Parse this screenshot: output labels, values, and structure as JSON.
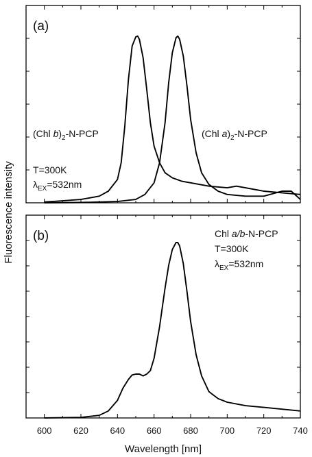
{
  "chart_data": [
    {
      "type": "line",
      "panel_label": "(a)",
      "xlim": [
        590,
        740
      ],
      "annotations": {
        "b_label_main": "(Chl ",
        "b_label_italic": "b",
        "b_label_tail": ")",
        "b_label_sub": "2",
        "b_label_end": "-N-PCP",
        "a_label_main": "(Chl ",
        "a_label_italic": "a",
        "a_label_tail": ")",
        "a_label_sub": "2",
        "a_label_end": "-N-PCP",
        "temp": "T=300K",
        "lambda": "λ",
        "lambda_sub": "EX",
        "lambda_val": "=532nm"
      },
      "series": [
        {
          "x": [
            600,
            610,
            620,
            630,
            635,
            640,
            642,
            644,
            646,
            648,
            650,
            651,
            652,
            654,
            656,
            658,
            660,
            663,
            666,
            670,
            675,
            680,
            690,
            700,
            705,
            710,
            720,
            730,
            740
          ],
          "y": [
            0.005,
            0.012,
            0.02,
            0.04,
            0.07,
            0.14,
            0.24,
            0.46,
            0.74,
            0.94,
            0.995,
            1.0,
            0.98,
            0.87,
            0.68,
            0.48,
            0.34,
            0.24,
            0.18,
            0.15,
            0.13,
            0.12,
            0.1,
            0.09,
            0.1,
            0.09,
            0.07,
            0.06,
            0.05
          ]
        },
        {
          "x": [
            600,
            620,
            640,
            650,
            655,
            660,
            663,
            666,
            668,
            670,
            672,
            673,
            674,
            676,
            678,
            680,
            683,
            686,
            690,
            695,
            700,
            710,
            720,
            730,
            735,
            740
          ],
          "y": [
            0.0,
            0.002,
            0.008,
            0.02,
            0.05,
            0.12,
            0.24,
            0.48,
            0.72,
            0.9,
            0.99,
            1.0,
            0.98,
            0.88,
            0.7,
            0.5,
            0.3,
            0.18,
            0.11,
            0.07,
            0.05,
            0.04,
            0.04,
            0.07,
            0.07,
            0.02
          ]
        }
      ]
    },
    {
      "type": "line",
      "panel_label": "(b)",
      "xlim": [
        590,
        740
      ],
      "xticks": [
        600,
        620,
        640,
        660,
        680,
        700,
        720,
        740
      ],
      "xlabel": "Wavelength [nm]",
      "annotations": {
        "label_main": "Chl ",
        "label_italic": "a/b",
        "label_end": "-N-PCP",
        "temp": "T=300K",
        "lambda": "λ",
        "lambda_sub": "EX",
        "lambda_val": "=532nm"
      },
      "series": [
        {
          "x": [
            600,
            620,
            630,
            635,
            640,
            643,
            646,
            648,
            650,
            652,
            654,
            656,
            658,
            660,
            663,
            666,
            668,
            670,
            672,
            673,
            674,
            676,
            678,
            680,
            683,
            686,
            690,
            695,
            700,
            710,
            720,
            730,
            740
          ],
          "y": [
            0.0,
            0.003,
            0.015,
            0.04,
            0.1,
            0.17,
            0.22,
            0.245,
            0.25,
            0.25,
            0.24,
            0.25,
            0.27,
            0.34,
            0.52,
            0.74,
            0.87,
            0.96,
            1.0,
            1.0,
            0.98,
            0.88,
            0.72,
            0.55,
            0.36,
            0.24,
            0.15,
            0.11,
            0.09,
            0.07,
            0.06,
            0.05,
            0.04
          ]
        }
      ]
    }
  ],
  "ylabel": "Fluorescence intensity",
  "colors": {
    "line": "#000000",
    "frame": "#000000"
  }
}
